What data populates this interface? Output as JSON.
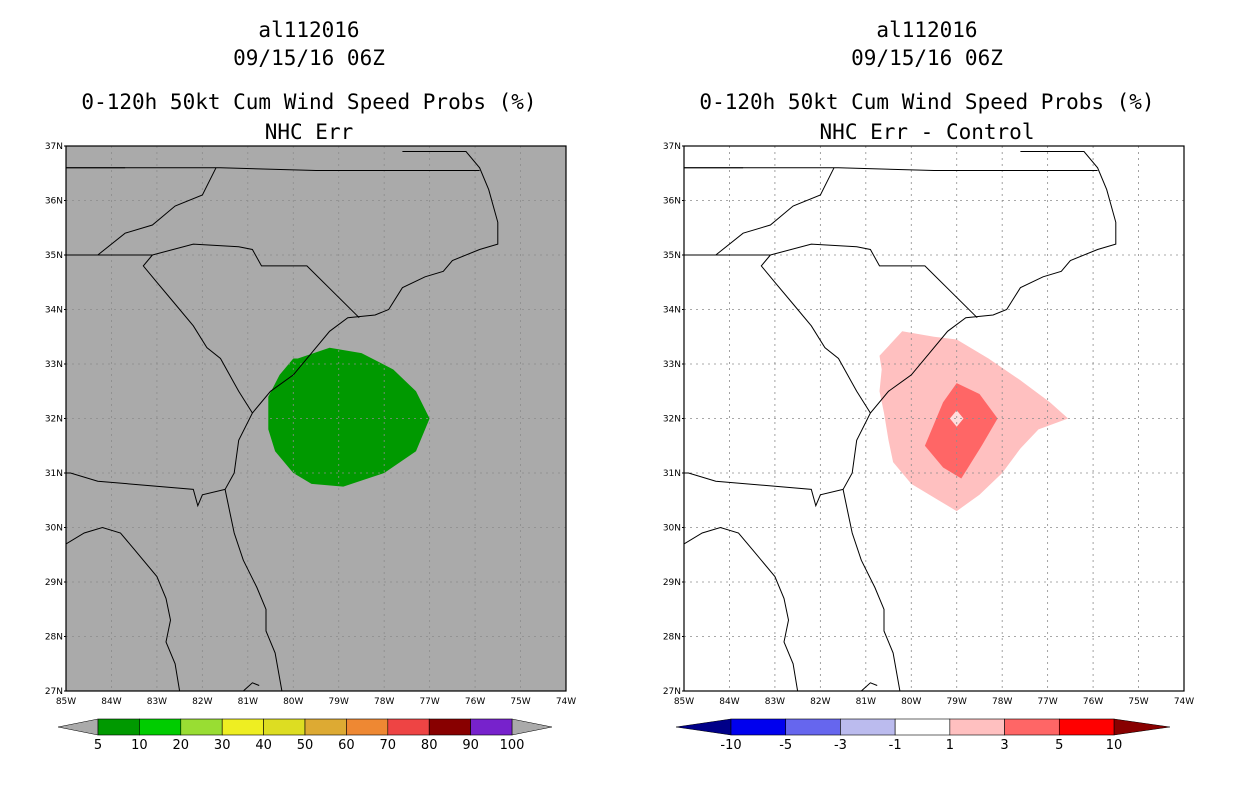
{
  "panels": [
    {
      "storm_id": "al112016",
      "datetime": "09/15/16 06Z",
      "product": "0-120h 50kt Cum Wind Speed Probs (%)",
      "subtitle": "NHC Err",
      "map_background": "#aaaaaa",
      "lat_labels": [
        "37N",
        "36N",
        "35N",
        "34N",
        "33N",
        "32N",
        "31N",
        "30N",
        "29N",
        "28N",
        "27N"
      ],
      "lon_labels": [
        "85W",
        "84W",
        "83W",
        "82W",
        "81W",
        "80W",
        "79W",
        "78W",
        "77W",
        "76W",
        "75W",
        "74W"
      ],
      "colorbar": {
        "colors": [
          "#009900",
          "#00cc00",
          "#99dd33",
          "#eeee22",
          "#dddd22",
          "#ddaa33",
          "#ee8833",
          "#ee4444",
          "#880000",
          "#7722cc"
        ],
        "end_left": "#aaaaaa",
        "end_right": "#aaaaaa",
        "labels": [
          "5",
          "10",
          "20",
          "30",
          "40",
          "50",
          "60",
          "70",
          "80",
          "90",
          "100"
        ]
      },
      "fill_color": "#009900"
    },
    {
      "storm_id": "al112016",
      "datetime": "09/15/16 06Z",
      "product": "0-120h 50kt Cum Wind Speed Probs (%)",
      "subtitle": "NHC Err - Control",
      "map_background": "#ffffff",
      "lat_labels": [
        "37N",
        "36N",
        "35N",
        "34N",
        "33N",
        "32N",
        "31N",
        "30N",
        "29N",
        "28N",
        "27N"
      ],
      "lon_labels": [
        "85W",
        "84W",
        "83W",
        "82W",
        "81W",
        "80W",
        "79W",
        "78W",
        "77W",
        "76W",
        "75W",
        "74W"
      ],
      "colorbar": {
        "colors": [
          "#0000ee",
          "#6666ee",
          "#bbbbee",
          "#ffffff",
          "#ffc0c0",
          "#ff6666",
          "#ff0000"
        ],
        "end_left": "#000088",
        "end_right": "#880000",
        "labels": [
          "-10",
          "-5",
          "-3",
          "-1",
          "1",
          "3",
          "5",
          "10"
        ]
      },
      "fill_colors": [
        "#ffc0c0",
        "#ff6666",
        "#ffdddd"
      ]
    }
  ]
}
